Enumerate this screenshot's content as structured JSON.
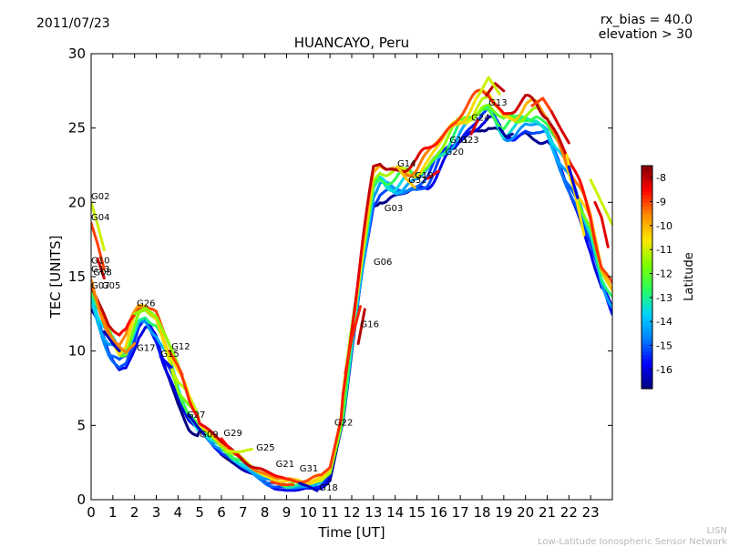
{
  "header": {
    "date": "2011/07/23",
    "rx_bias": "rx_bias = 40.0",
    "elevation": "elevation > 30"
  },
  "footer": {
    "network_short": "LISN",
    "network_full": "Low-Latitude Ionospheric Sensor Network"
  },
  "chart_data": {
    "type": "scatter",
    "title": "HUANCAYO, Peru",
    "xlabel": "Time [UT]",
    "ylabel": "TEC [UNITS]",
    "xlim": [
      0,
      24
    ],
    "ylim": [
      0,
      30
    ],
    "xticks": [
      0,
      1,
      2,
      3,
      4,
      5,
      6,
      7,
      8,
      9,
      10,
      11,
      12,
      13,
      14,
      15,
      16,
      17,
      18,
      19,
      20,
      21,
      22,
      23
    ],
    "yticks": [
      0,
      5,
      10,
      15,
      20,
      25,
      30
    ],
    "colorbar": {
      "label": "Latitude",
      "range": [
        -16.8,
        -7.5
      ],
      "ticks": [
        -8,
        -9,
        -10,
        -11,
        -12,
        -13,
        -14,
        -15,
        -16
      ],
      "colors": [
        "#00007f",
        "#0000ff",
        "#0080ff",
        "#00d4ff",
        "#27ff5c",
        "#7fff00",
        "#ffe600",
        "#ff8c00",
        "#ff0000",
        "#7f0000"
      ]
    },
    "envelope": {
      "x": [
        0,
        0.4,
        0.8,
        1,
        1.3,
        1.6,
        2,
        2.2,
        2.5,
        3,
        3.3,
        3.6,
        4,
        4.5,
        5,
        5.5,
        6,
        6.5,
        7,
        7.5,
        8,
        8.5,
        9,
        9.5,
        10,
        10.3,
        10.6,
        11,
        11.5,
        12,
        12.5,
        13,
        13.3,
        13.6,
        14,
        14.5,
        15,
        15.5,
        16,
        16.5,
        17,
        17.5,
        18,
        18.3,
        18.6,
        19,
        19.5,
        20,
        20.5,
        21,
        21.5,
        22,
        22.5,
        23,
        23.5,
        24
      ],
      "y": [
        13.8,
        12.2,
        10.8,
        10.4,
        9.8,
        10.0,
        11.5,
        12.2,
        12.4,
        11.6,
        10.4,
        9.3,
        7.6,
        6.0,
        4.9,
        4.2,
        3.5,
        2.9,
        2.4,
        1.9,
        1.5,
        1.2,
        1.0,
        1.0,
        1.0,
        1.1,
        1.2,
        1.8,
        5.0,
        10.8,
        16.3,
        21.0,
        21.5,
        21.3,
        21.3,
        21.5,
        21.7,
        22.3,
        23.3,
        24.2,
        25.0,
        25.6,
        26.3,
        26.4,
        25.9,
        25.1,
        25.2,
        25.7,
        25.6,
        25.0,
        23.5,
        21.8,
        20.0,
        18.0,
        15.0,
        13.5
      ]
    },
    "trace_offsets": [
      -1.0,
      -0.75,
      -0.5,
      -0.25,
      0,
      0.25,
      0.5,
      0.75,
      1.0
    ],
    "trace_latitudes": [
      -16.5,
      -15.5,
      -15.0,
      -14.0,
      -13.0,
      -12.0,
      -11.0,
      -10.0,
      -8.5
    ],
    "satellites": [
      {
        "id": "G02",
        "x": 0.0,
        "y": 20.2
      },
      {
        "id": "G04",
        "x": 0.0,
        "y": 18.8
      },
      {
        "id": "G10",
        "x": 0.0,
        "y": 15.9
      },
      {
        "id": "G13",
        "x": 0.0,
        "y": 15.3
      },
      {
        "id": "G08",
        "x": 0.1,
        "y": 15.1
      },
      {
        "id": "G07",
        "x": 0.0,
        "y": 14.2
      },
      {
        "id": "G05",
        "x": 0.5,
        "y": 14.2
      },
      {
        "id": "G26",
        "x": 2.1,
        "y": 13.0
      },
      {
        "id": "G17",
        "x": 2.1,
        "y": 10.0
      },
      {
        "id": "G12",
        "x": 3.7,
        "y": 10.1
      },
      {
        "id": "G15",
        "x": 3.2,
        "y": 9.6
      },
      {
        "id": "G27",
        "x": 4.4,
        "y": 5.5
      },
      {
        "id": "G09",
        "x": 5.0,
        "y": 4.2
      },
      {
        "id": "G29",
        "x": 6.1,
        "y": 4.3
      },
      {
        "id": "G25",
        "x": 7.6,
        "y": 3.3
      },
      {
        "id": "G21",
        "x": 8.5,
        "y": 2.2
      },
      {
        "id": "G31",
        "x": 9.6,
        "y": 1.9
      },
      {
        "id": "G18",
        "x": 10.5,
        "y": 0.6
      },
      {
        "id": "G22",
        "x": 11.2,
        "y": 5.0
      },
      {
        "id": "G16",
        "x": 12.4,
        "y": 11.6
      },
      {
        "id": "G06",
        "x": 13.0,
        "y": 15.8
      },
      {
        "id": "G03",
        "x": 13.5,
        "y": 19.4
      },
      {
        "id": "G14",
        "x": 14.1,
        "y": 22.4
      },
      {
        "id": "G32",
        "x": 14.6,
        "y": 21.3
      },
      {
        "id": "G19",
        "x": 14.9,
        "y": 21.6
      },
      {
        "id": "G20",
        "x": 16.3,
        "y": 23.2
      },
      {
        "id": "G11",
        "x": 16.5,
        "y": 24.0
      },
      {
        "id": "G23",
        "x": 17.0,
        "y": 24.0
      },
      {
        "id": "G24",
        "x": 17.5,
        "y": 25.5
      },
      {
        "id": "G13",
        "x": 18.3,
        "y": 26.5
      }
    ],
    "segments": [
      {
        "lat": -11.0,
        "x": [
          0,
          0.3,
          0.6
        ],
        "y": [
          20.0,
          18.5,
          16.8
        ]
      },
      {
        "lat": -9.0,
        "x": [
          0,
          0.3,
          0.6
        ],
        "y": [
          18.6,
          17.2,
          15.5
        ]
      },
      {
        "lat": -8.2,
        "x": [
          0.3,
          0.6
        ],
        "y": [
          16.2,
          14.9
        ]
      },
      {
        "lat": -9.5,
        "x": [
          0,
          0.4,
          0.8,
          1.2,
          1.6,
          2.0
        ],
        "y": [
          14.8,
          12.6,
          11.0,
          10.4,
          9.9,
          10.5
        ]
      },
      {
        "lat": -11.5,
        "x": [
          2.0,
          2.5,
          3.0,
          3.5,
          4.0
        ],
        "y": [
          12.5,
          12.9,
          12.3,
          10.8,
          9.1
        ]
      },
      {
        "lat": -9.0,
        "x": [
          3.6,
          4.0,
          4.2
        ],
        "y": [
          10.0,
          9.0,
          8.4
        ]
      },
      {
        "lat": -16.3,
        "x": [
          0.6,
          1.0,
          1.3
        ],
        "y": [
          11.3,
          10.5,
          10.0
        ]
      },
      {
        "lat": -15.8,
        "x": [
          3.2,
          3.7
        ],
        "y": [
          9.6,
          8.9
        ]
      },
      {
        "lat": -16.2,
        "x": [
          4.5,
          4.9,
          5.2
        ],
        "y": [
          5.7,
          4.9,
          4.4
        ]
      },
      {
        "lat": -8.5,
        "x": [
          6.0,
          6.4,
          6.8
        ],
        "y": [
          4.1,
          3.4,
          2.9
        ]
      },
      {
        "lat": -11.0,
        "x": [
          6.2,
          6.8,
          7.4
        ],
        "y": [
          3.3,
          3.2,
          3.4
        ]
      },
      {
        "lat": -9.0,
        "x": [
          8.3,
          8.8,
          9.3
        ],
        "y": [
          1.2,
          1.0,
          1.0
        ]
      },
      {
        "lat": -16.3,
        "x": [
          9.6,
          10.0,
          10.4
        ],
        "y": [
          1.1,
          0.9,
          0.6
        ]
      },
      {
        "lat": -8.8,
        "x": [
          11.7,
          12.0,
          12.4
        ],
        "y": [
          8.5,
          10.8,
          13.0
        ]
      },
      {
        "lat": -8.0,
        "x": [
          12.3,
          12.6
        ],
        "y": [
          10.5,
          12.8
        ]
      },
      {
        "lat": -10.2,
        "x": [
          14.1,
          14.5,
          14.9
        ],
        "y": [
          22.4,
          21.6,
          21.0
        ]
      },
      {
        "lat": -8.5,
        "x": [
          15.5,
          16.0
        ],
        "y": [
          21.6,
          22.1
        ]
      },
      {
        "lat": -8.2,
        "x": [
          17.5,
          17.8
        ],
        "y": [
          24.6,
          25.5
        ]
      },
      {
        "lat": -8.0,
        "x": [
          18.2,
          18.6,
          19.0
        ],
        "y": [
          27.2,
          28.0,
          27.5
        ]
      },
      {
        "lat": -11.0,
        "x": [
          17.8,
          18.3,
          18.8
        ],
        "y": [
          27.1,
          28.4,
          27.3
        ]
      },
      {
        "lat": -16.5,
        "x": [
          18.8,
          19.1,
          19.4
        ],
        "y": [
          25.0,
          24.4,
          24.6
        ]
      },
      {
        "lat": -9.0,
        "x": [
          20.3,
          20.8,
          21.2
        ],
        "y": [
          26.5,
          27.0,
          26.1
        ]
      },
      {
        "lat": -8.2,
        "x": [
          21.2,
          21.6,
          22.0
        ],
        "y": [
          26.1,
          25.0,
          24.0
        ]
      },
      {
        "lat": -10.5,
        "x": [
          21.9,
          22.3,
          22.7
        ],
        "y": [
          23.2,
          20.5,
          17.8
        ]
      },
      {
        "lat": -16.0,
        "x": [
          22.0,
          22.2,
          22.4
        ],
        "y": [
          22.4,
          21.3,
          20.3
        ]
      },
      {
        "lat": -8.3,
        "x": [
          23.2,
          23.5,
          23.8
        ],
        "y": [
          20.0,
          19.0,
          17.0
        ]
      },
      {
        "lat": -11.0,
        "x": [
          23.0,
          23.5,
          24.0
        ],
        "y": [
          21.5,
          20.0,
          18.5
        ]
      }
    ]
  }
}
